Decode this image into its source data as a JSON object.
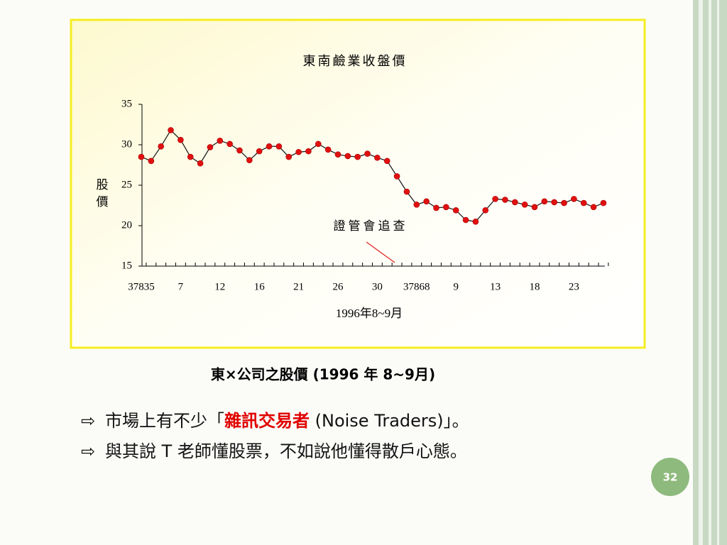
{
  "chart_data": {
    "type": "line",
    "title": "東南鹼業收盤價",
    "y_label": "股價",
    "x_label": "1996年8~9月",
    "annotation": "證管會追查",
    "categories": [
      "37835",
      null,
      null,
      null,
      "7",
      null,
      null,
      null,
      "12",
      null,
      null,
      null,
      "16",
      null,
      null,
      null,
      "21",
      null,
      null,
      null,
      "26",
      null,
      null,
      null,
      "30",
      null,
      null,
      null,
      "37868",
      null,
      null,
      null,
      "9",
      null,
      null,
      null,
      "13",
      null,
      null,
      null,
      "18",
      null,
      null,
      null,
      "23",
      null,
      null,
      null
    ],
    "series": [
      {
        "name": "收盤價",
        "color": "#e01010",
        "values": [
          28.5,
          28,
          29.8,
          31.8,
          30.6,
          28.5,
          27.7,
          29.7,
          30.5,
          30.1,
          29.3,
          28.1,
          29.2,
          29.8,
          29.8,
          28.5,
          29.1,
          29.2,
          30.1,
          29.4,
          28.8,
          28.6,
          28.5,
          28.9,
          28.4,
          28,
          26.1,
          24.2,
          22.6,
          23,
          22.2,
          22.3,
          21.9,
          20.7,
          20.5,
          21.9,
          23.3,
          23.2,
          22.9,
          22.6,
          22.3,
          23,
          22.9,
          22.8,
          23.3,
          22.8,
          22.3,
          22.8
        ]
      }
    ],
    "ylim": [
      15,
      35
    ],
    "yticks": [
      15,
      20,
      25,
      30,
      35
    ]
  },
  "caption": "東×公司之股價 (1996 年 8~9月)",
  "bullet_marker": "⇨",
  "bullets": [
    [
      "市場上有不少「",
      "雜訊交易者",
      " (Noise Traders)」。"
    ],
    [
      "與其說 T 老師懂股票，不如說他懂得散戶心態。"
    ]
  ],
  "page_number": "32"
}
